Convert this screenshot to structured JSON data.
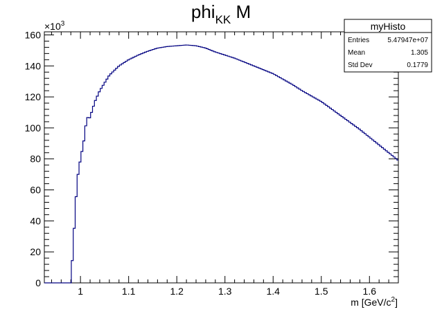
{
  "chart_data": {
    "type": "histogram",
    "title_main": "phi",
    "title_sub": "KK",
    "title_tail": " M",
    "xlabel_main": "m [GeV/c",
    "xlabel_sup": "2",
    "xlabel_tail": "]",
    "y_multiplier_base": "×10",
    "y_multiplier_exp": "3",
    "xlim": [
      0.925,
      1.66
    ],
    "ylim": [
      0,
      162
    ],
    "x_ticks": [
      1.0,
      1.1,
      1.2,
      1.3,
      1.4,
      1.5,
      1.6
    ],
    "x_tick_labels": [
      "1",
      "1.1",
      "1.2",
      "1.3",
      "1.4",
      "1.5",
      "1.6"
    ],
    "y_ticks": [
      0,
      20,
      40,
      60,
      80,
      100,
      120,
      140,
      160
    ],
    "y_tick_labels": [
      "0",
      "20",
      "40",
      "60",
      "80",
      "100",
      "120",
      "140",
      "160"
    ],
    "line_color": "#000080",
    "series": [
      {
        "x": [
          0.925,
          0.98,
          0.985,
          0.99,
          0.995,
          1.0,
          1.005,
          1.01,
          1.013,
          1.016,
          1.02,
          1.025,
          1.03,
          1.04,
          1.05,
          1.06,
          1.07,
          1.08,
          1.09,
          1.1,
          1.12,
          1.14,
          1.16,
          1.18,
          1.2,
          1.22,
          1.24,
          1.26,
          1.28,
          1.3,
          1.32,
          1.34,
          1.36,
          1.38,
          1.4,
          1.42,
          1.44,
          1.46,
          1.48,
          1.5,
          1.52,
          1.54,
          1.56,
          1.58,
          1.6,
          1.62,
          1.64,
          1.66
        ],
        "y": [
          0,
          0,
          24,
          52,
          70,
          80,
          88,
          97,
          110,
          105,
          107,
          112,
          117,
          124,
          129,
          134,
          137,
          140,
          142,
          144,
          147,
          149.5,
          151.5,
          152.5,
          153,
          153.5,
          153,
          151.5,
          149,
          147,
          145,
          142.5,
          140,
          137.5,
          135,
          131.5,
          128,
          124,
          120.5,
          117,
          112.5,
          108,
          103.5,
          99,
          94,
          89,
          84,
          79
        ]
      }
    ],
    "stats_box": {
      "title": "myHisto",
      "rows": [
        {
          "label": "Entries",
          "value": "5.47947e+07"
        },
        {
          "label": "Mean",
          "value": "1.305"
        },
        {
          "label": "Std Dev",
          "value": "0.1779"
        }
      ]
    }
  }
}
